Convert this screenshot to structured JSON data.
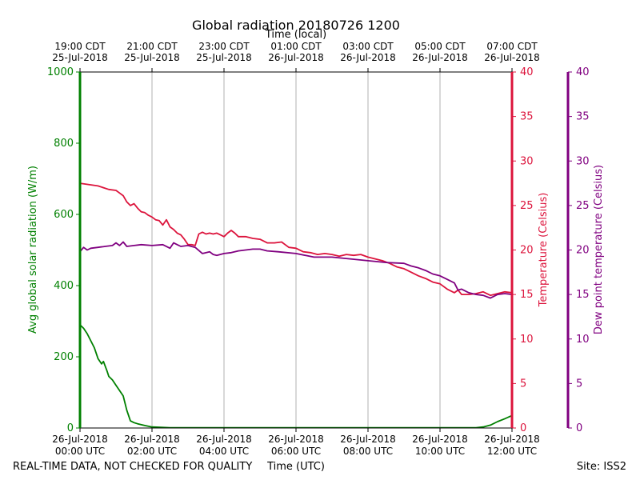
{
  "chart_data": {
    "type": "line",
    "title": "Global radiation 20180726 1200",
    "top_axis_label": "Time (local)",
    "xlabel": "Time (UTC)",
    "footer_left": "REAL-TIME DATA, NOT CHECKED FOR QUALITY",
    "footer_right": "Site: ISS2",
    "x_range_hours": [
      0,
      12
    ],
    "x_ticks_bottom": [
      {
        "hour": 0,
        "line1": "26-Jul-2018",
        "line2": "00:00 UTC"
      },
      {
        "hour": 2,
        "line1": "26-Jul-2018",
        "line2": "02:00 UTC"
      },
      {
        "hour": 4,
        "line1": "26-Jul-2018",
        "line2": "04:00 UTC"
      },
      {
        "hour": 6,
        "line1": "26-Jul-2018",
        "line2": "06:00 UTC"
      },
      {
        "hour": 8,
        "line1": "26-Jul-2018",
        "line2": "08:00 UTC"
      },
      {
        "hour": 10,
        "line1": "26-Jul-2018",
        "line2": "10:00 UTC"
      },
      {
        "hour": 12,
        "line1": "26-Jul-2018",
        "line2": "12:00 UTC"
      }
    ],
    "x_ticks_top": [
      {
        "hour": 0,
        "line1": "19:00 CDT",
        "line2": "25-Jul-2018"
      },
      {
        "hour": 2,
        "line1": "21:00 CDT",
        "line2": "25-Jul-2018"
      },
      {
        "hour": 4,
        "line1": "23:00 CDT",
        "line2": "25-Jul-2018"
      },
      {
        "hour": 6,
        "line1": "01:00 CDT",
        "line2": "26-Jul-2018"
      },
      {
        "hour": 8,
        "line1": "03:00 CDT",
        "line2": "26-Jul-2018"
      },
      {
        "hour": 10,
        "line1": "05:00 CDT",
        "line2": "26-Jul-2018"
      },
      {
        "hour": 12,
        "line1": "07:00 CDT",
        "line2": "26-Jul-2018"
      }
    ],
    "axes": {
      "left": {
        "label": "Avg global solar radiation (W/m)",
        "range": [
          0,
          1000
        ],
        "ticks": [
          0,
          200,
          400,
          600,
          800,
          1000
        ],
        "color": "#008000"
      },
      "right": {
        "label": "Temperature (Celsius)",
        "range": [
          0,
          40
        ],
        "ticks": [
          0,
          5,
          10,
          15,
          20,
          25,
          30,
          35,
          40
        ],
        "color": "#dc143c"
      },
      "right2": {
        "label": "Dew point temperature (Celsius)",
        "range": [
          0,
          40
        ],
        "ticks": [
          0,
          5,
          10,
          15,
          20,
          25,
          30,
          35,
          40
        ],
        "color": "#800080"
      }
    },
    "grid": "vertical",
    "series": [
      {
        "id": "radiation",
        "axis": "left",
        "color": "#008000",
        "x": [
          0,
          0.1,
          0.2,
          0.3,
          0.4,
          0.5,
          0.6,
          0.65,
          0.75,
          0.8,
          0.9,
          1.0,
          1.1,
          1.2,
          1.3,
          1.4,
          1.5,
          1.6,
          1.8,
          2.0,
          2.5,
          3,
          4,
          5,
          6,
          7,
          8,
          9,
          10,
          11,
          11.2,
          11.4,
          11.6,
          11.8,
          12.0
        ],
        "values": [
          290,
          280,
          265,
          245,
          225,
          195,
          180,
          187,
          160,
          145,
          135,
          120,
          105,
          90,
          50,
          20,
          15,
          12,
          7,
          3,
          1,
          1,
          1,
          1,
          1,
          1,
          1,
          1,
          1,
          1,
          3,
          8,
          18,
          26,
          35
        ]
      },
      {
        "id": "temperature",
        "axis": "right",
        "color": "#dc143c",
        "x": [
          0,
          0.5,
          0.8,
          1.0,
          1.1,
          1.2,
          1.3,
          1.4,
          1.5,
          1.6,
          1.7,
          1.8,
          1.9,
          2.0,
          2.1,
          2.2,
          2.3,
          2.4,
          2.5,
          2.6,
          2.7,
          2.8,
          2.9,
          3.0,
          3.1,
          3.2,
          3.3,
          3.4,
          3.5,
          3.6,
          3.7,
          3.8,
          3.9,
          4.0,
          4.1,
          4.2,
          4.3,
          4.4,
          4.6,
          4.8,
          5.0,
          5.2,
          5.4,
          5.6,
          5.8,
          6.0,
          6.2,
          6.4,
          6.6,
          6.8,
          7.0,
          7.2,
          7.4,
          7.6,
          7.8,
          8.0,
          8.2,
          8.4,
          8.6,
          8.8,
          9.0,
          9.2,
          9.4,
          9.6,
          9.8,
          10.0,
          10.2,
          10.4,
          10.5,
          10.6,
          10.8,
          11.0,
          11.2,
          11.4,
          11.6,
          11.8,
          12.0
        ],
        "values": [
          27.5,
          27.2,
          26.8,
          26.7,
          26.4,
          26.1,
          25.4,
          25.0,
          25.2,
          24.7,
          24.3,
          24.2,
          23.9,
          23.7,
          23.4,
          23.3,
          22.8,
          23.4,
          22.6,
          22.3,
          21.9,
          21.7,
          21.2,
          20.6,
          20.6,
          20.5,
          21.8,
          22.0,
          21.8,
          21.9,
          21.8,
          21.9,
          21.7,
          21.5,
          21.9,
          22.2,
          21.9,
          21.5,
          21.5,
          21.3,
          21.2,
          20.8,
          20.8,
          20.9,
          20.3,
          20.2,
          19.8,
          19.7,
          19.5,
          19.6,
          19.5,
          19.3,
          19.5,
          19.4,
          19.5,
          19.2,
          19.0,
          18.8,
          18.5,
          18.1,
          17.9,
          17.5,
          17.1,
          16.8,
          16.4,
          16.2,
          15.6,
          15.2,
          15.5,
          15.0,
          15.0,
          15.1,
          15.3,
          14.9,
          15.1,
          15.3,
          15.2
        ]
      },
      {
        "id": "dewpoint",
        "axis": "right2",
        "color": "#800080",
        "x": [
          0,
          0.1,
          0.2,
          0.3,
          0.5,
          0.7,
          0.9,
          1.0,
          1.1,
          1.2,
          1.3,
          1.5,
          1.7,
          2.0,
          2.3,
          2.5,
          2.6,
          2.7,
          2.8,
          3.0,
          3.2,
          3.4,
          3.6,
          3.7,
          3.8,
          4.0,
          4.2,
          4.4,
          4.6,
          4.8,
          5.0,
          5.2,
          5.5,
          6.0,
          6.5,
          7.0,
          7.5,
          8.0,
          8.5,
          9.0,
          9.2,
          9.4,
          9.6,
          9.8,
          10.0,
          10.2,
          10.4,
          10.5,
          10.6,
          10.8,
          11.0,
          11.2,
          11.4,
          11.6,
          11.8,
          12.0
        ],
        "values": [
          19.8,
          20.3,
          20.0,
          20.2,
          20.3,
          20.4,
          20.5,
          20.8,
          20.5,
          20.9,
          20.4,
          20.5,
          20.6,
          20.5,
          20.6,
          20.2,
          20.8,
          20.6,
          20.4,
          20.5,
          20.3,
          19.6,
          19.8,
          19.5,
          19.4,
          19.6,
          19.7,
          19.9,
          20.0,
          20.1,
          20.1,
          19.9,
          19.8,
          19.6,
          19.2,
          19.2,
          19.0,
          18.8,
          18.6,
          18.5,
          18.2,
          18.0,
          17.7,
          17.3,
          17.1,
          16.7,
          16.3,
          15.5,
          15.6,
          15.2,
          15.0,
          14.9,
          14.6,
          15.0,
          15.1,
          15.0
        ]
      }
    ]
  }
}
